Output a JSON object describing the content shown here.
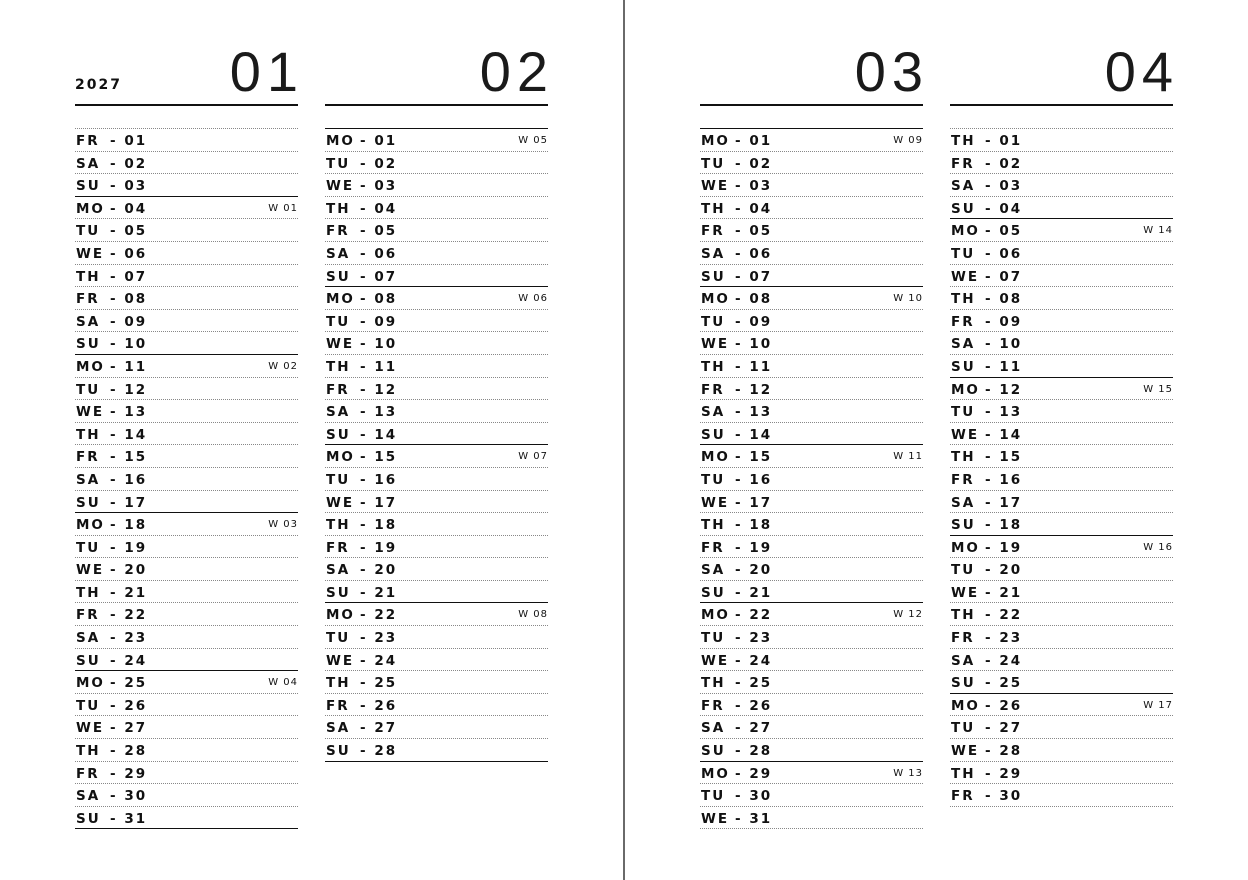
{
  "year": "2027",
  "separator": "-",
  "months": [
    {
      "number": "01",
      "days": [
        {
          "dow": "FR",
          "date": "01"
        },
        {
          "dow": "SA",
          "date": "02"
        },
        {
          "dow": "SU",
          "date": "03"
        },
        {
          "dow": "MO",
          "date": "04",
          "week": "W 01"
        },
        {
          "dow": "TU",
          "date": "05"
        },
        {
          "dow": "WE",
          "date": "06"
        },
        {
          "dow": "TH",
          "date": "07"
        },
        {
          "dow": "FR",
          "date": "08"
        },
        {
          "dow": "SA",
          "date": "09"
        },
        {
          "dow": "SU",
          "date": "10"
        },
        {
          "dow": "MO",
          "date": "11",
          "week": "W 02"
        },
        {
          "dow": "TU",
          "date": "12"
        },
        {
          "dow": "WE",
          "date": "13"
        },
        {
          "dow": "TH",
          "date": "14"
        },
        {
          "dow": "FR",
          "date": "15"
        },
        {
          "dow": "SA",
          "date": "16"
        },
        {
          "dow": "SU",
          "date": "17"
        },
        {
          "dow": "MO",
          "date": "18",
          "week": "W 03"
        },
        {
          "dow": "TU",
          "date": "19"
        },
        {
          "dow": "WE",
          "date": "20"
        },
        {
          "dow": "TH",
          "date": "21"
        },
        {
          "dow": "FR",
          "date": "22"
        },
        {
          "dow": "SA",
          "date": "23"
        },
        {
          "dow": "SU",
          "date": "24"
        },
        {
          "dow": "MO",
          "date": "25",
          "week": "W 04"
        },
        {
          "dow": "TU",
          "date": "26"
        },
        {
          "dow": "WE",
          "date": "27"
        },
        {
          "dow": "TH",
          "date": "28"
        },
        {
          "dow": "FR",
          "date": "29"
        },
        {
          "dow": "SA",
          "date": "30"
        },
        {
          "dow": "SU",
          "date": "31"
        }
      ]
    },
    {
      "number": "02",
      "days": [
        {
          "dow": "MO",
          "date": "01",
          "week": "W 05"
        },
        {
          "dow": "TU",
          "date": "02"
        },
        {
          "dow": "WE",
          "date": "03"
        },
        {
          "dow": "TH",
          "date": "04"
        },
        {
          "dow": "FR",
          "date": "05"
        },
        {
          "dow": "SA",
          "date": "06"
        },
        {
          "dow": "SU",
          "date": "07"
        },
        {
          "dow": "MO",
          "date": "08",
          "week": "W 06"
        },
        {
          "dow": "TU",
          "date": "09"
        },
        {
          "dow": "WE",
          "date": "10"
        },
        {
          "dow": "TH",
          "date": "11"
        },
        {
          "dow": "FR",
          "date": "12"
        },
        {
          "dow": "SA",
          "date": "13"
        },
        {
          "dow": "SU",
          "date": "14"
        },
        {
          "dow": "MO",
          "date": "15",
          "week": "W 07"
        },
        {
          "dow": "TU",
          "date": "16"
        },
        {
          "dow": "WE",
          "date": "17"
        },
        {
          "dow": "TH",
          "date": "18"
        },
        {
          "dow": "FR",
          "date": "19"
        },
        {
          "dow": "SA",
          "date": "20"
        },
        {
          "dow": "SU",
          "date": "21"
        },
        {
          "dow": "MO",
          "date": "22",
          "week": "W 08"
        },
        {
          "dow": "TU",
          "date": "23"
        },
        {
          "dow": "WE",
          "date": "24"
        },
        {
          "dow": "TH",
          "date": "25"
        },
        {
          "dow": "FR",
          "date": "26"
        },
        {
          "dow": "SA",
          "date": "27"
        },
        {
          "dow": "SU",
          "date": "28"
        }
      ]
    },
    {
      "number": "03",
      "days": [
        {
          "dow": "MO",
          "date": "01",
          "week": "W 09"
        },
        {
          "dow": "TU",
          "date": "02"
        },
        {
          "dow": "WE",
          "date": "03"
        },
        {
          "dow": "TH",
          "date": "04"
        },
        {
          "dow": "FR",
          "date": "05"
        },
        {
          "dow": "SA",
          "date": "06"
        },
        {
          "dow": "SU",
          "date": "07"
        },
        {
          "dow": "MO",
          "date": "08",
          "week": "W 10"
        },
        {
          "dow": "TU",
          "date": "09"
        },
        {
          "dow": "WE",
          "date": "10"
        },
        {
          "dow": "TH",
          "date": "11"
        },
        {
          "dow": "FR",
          "date": "12"
        },
        {
          "dow": "SA",
          "date": "13"
        },
        {
          "dow": "SU",
          "date": "14"
        },
        {
          "dow": "MO",
          "date": "15",
          "week": "W 11"
        },
        {
          "dow": "TU",
          "date": "16"
        },
        {
          "dow": "WE",
          "date": "17"
        },
        {
          "dow": "TH",
          "date": "18"
        },
        {
          "dow": "FR",
          "date": "19"
        },
        {
          "dow": "SA",
          "date": "20"
        },
        {
          "dow": "SU",
          "date": "21"
        },
        {
          "dow": "MO",
          "date": "22",
          "week": "W 12"
        },
        {
          "dow": "TU",
          "date": "23"
        },
        {
          "dow": "WE",
          "date": "24"
        },
        {
          "dow": "TH",
          "date": "25"
        },
        {
          "dow": "FR",
          "date": "26"
        },
        {
          "dow": "SA",
          "date": "27"
        },
        {
          "dow": "SU",
          "date": "28"
        },
        {
          "dow": "MO",
          "date": "29",
          "week": "W 13"
        },
        {
          "dow": "TU",
          "date": "30"
        },
        {
          "dow": "WE",
          "date": "31"
        }
      ]
    },
    {
      "number": "04",
      "days": [
        {
          "dow": "TH",
          "date": "01"
        },
        {
          "dow": "FR",
          "date": "02"
        },
        {
          "dow": "SA",
          "date": "03"
        },
        {
          "dow": "SU",
          "date": "04"
        },
        {
          "dow": "MO",
          "date": "05",
          "week": "W 14"
        },
        {
          "dow": "TU",
          "date": "06"
        },
        {
          "dow": "WE",
          "date": "07"
        },
        {
          "dow": "TH",
          "date": "08"
        },
        {
          "dow": "FR",
          "date": "09"
        },
        {
          "dow": "SA",
          "date": "10"
        },
        {
          "dow": "SU",
          "date": "11"
        },
        {
          "dow": "MO",
          "date": "12",
          "week": "W 15"
        },
        {
          "dow": "TU",
          "date": "13"
        },
        {
          "dow": "WE",
          "date": "14"
        },
        {
          "dow": "TH",
          "date": "15"
        },
        {
          "dow": "FR",
          "date": "16"
        },
        {
          "dow": "SA",
          "date": "17"
        },
        {
          "dow": "SU",
          "date": "18"
        },
        {
          "dow": "MO",
          "date": "19",
          "week": "W 16"
        },
        {
          "dow": "TU",
          "date": "20"
        },
        {
          "dow": "WE",
          "date": "21"
        },
        {
          "dow": "TH",
          "date": "22"
        },
        {
          "dow": "FR",
          "date": "23"
        },
        {
          "dow": "SA",
          "date": "24"
        },
        {
          "dow": "SU",
          "date": "25"
        },
        {
          "dow": "MO",
          "date": "26",
          "week": "W 17"
        },
        {
          "dow": "TU",
          "date": "27"
        },
        {
          "dow": "WE",
          "date": "28"
        },
        {
          "dow": "TH",
          "date": "29"
        },
        {
          "dow": "FR",
          "date": "30"
        }
      ]
    }
  ]
}
